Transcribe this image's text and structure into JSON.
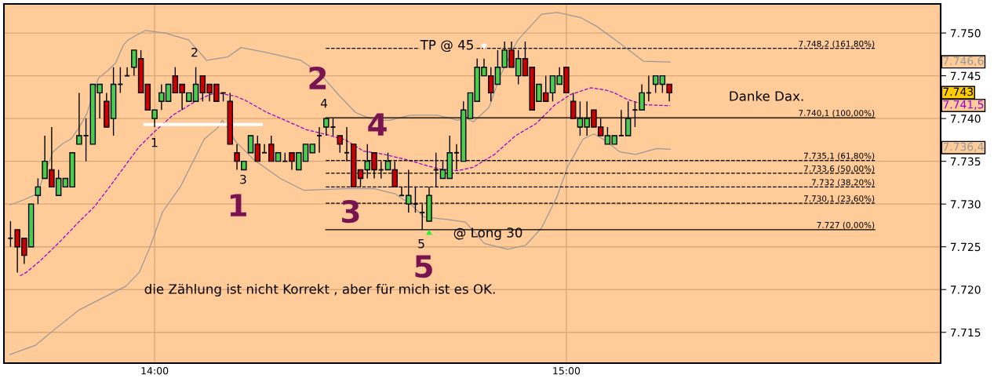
{
  "chart_data": {
    "type": "candlestick",
    "x": [
      13.65,
      13.6667,
      13.6833,
      13.7,
      13.7167,
      13.7333,
      13.75,
      13.7667,
      13.7833,
      13.8,
      13.8167,
      13.8333,
      13.85,
      13.8667,
      13.8833,
      13.9,
      13.9167,
      13.9333,
      13.95,
      13.9667,
      13.9833,
      14.0,
      14.0167,
      14.0333,
      14.05,
      14.0667,
      14.0833,
      14.1,
      14.1167,
      14.1333,
      14.15,
      14.1667,
      14.1833,
      14.2,
      14.2167,
      14.2333,
      14.25,
      14.2667,
      14.2833,
      14.3,
      14.3167,
      14.3333,
      14.35,
      14.3667,
      14.3833,
      14.4,
      14.4167,
      14.4333,
      14.45,
      14.4667,
      14.4833,
      14.5,
      14.5167,
      14.5333,
      14.55,
      14.5667,
      14.5833,
      14.6,
      14.6167,
      14.6333,
      14.65,
      14.6667,
      14.6833,
      14.7,
      14.7167,
      14.7333,
      14.75,
      14.7667,
      14.7833,
      14.8,
      14.8167,
      14.8333,
      14.85,
      14.8667,
      14.8833,
      14.9,
      14.9167,
      14.9333,
      14.95,
      14.9667,
      14.9833,
      15.0,
      15.0167,
      15.0333,
      15.05,
      15.0667,
      15.0833,
      15.1,
      15.1167,
      15.1333,
      15.15,
      15.1667,
      15.1833,
      15.2,
      15.2167,
      15.2333,
      15.25
    ],
    "ohlc": [
      [
        7726,
        7728,
        7725,
        7726
      ],
      [
        7727,
        7727,
        7722,
        7725
      ],
      [
        7726,
        7726,
        7723,
        7724
      ],
      [
        7725,
        7730,
        7725,
        7730
      ],
      [
        7731,
        7733,
        7730,
        7732
      ],
      [
        7733,
        7738,
        7733,
        7735
      ],
      [
        7734,
        7739,
        7732,
        7732
      ],
      [
        7731,
        7734,
        7731,
        7733
      ],
      [
        7732,
        7733,
        7732,
        7733
      ],
      [
        7732,
        7736,
        7732,
        7736
      ],
      [
        7737,
        7743,
        7737,
        7738
      ],
      [
        7738,
        7740,
        7735,
        7738
      ],
      [
        7737,
        7744,
        7737,
        7744
      ],
      [
        7743,
        7744,
        7740,
        7744
      ],
      [
        7742,
        7743,
        7739,
        7739
      ],
      [
        7740,
        7746,
        7738,
        7744
      ],
      [
        7744,
        7746,
        7743,
        7744
      ],
      [
        7745,
        7746,
        7745,
        7745
      ],
      [
        7746,
        7748,
        7745,
        7748
      ],
      [
        7747,
        7748,
        7743,
        7743
      ],
      [
        7744,
        7744,
        7741,
        7741
      ],
      [
        7740,
        7741,
        7739,
        7741
      ],
      [
        7742,
        7744,
        7741,
        7743
      ],
      [
        7742,
        7744,
        7742,
        7744
      ],
      [
        7745,
        7746,
        7743,
        7743
      ],
      [
        7744,
        7744,
        7741,
        7743
      ],
      [
        7742,
        7743,
        7742,
        7743
      ],
      [
        7742,
        7746,
        7742,
        7744
      ],
      [
        7745,
        7745,
        7742,
        7743
      ],
      [
        7744,
        7744,
        7742,
        7743
      ],
      [
        7744,
        7744,
        7742,
        7742
      ],
      [
        7743,
        7743,
        7742,
        7743
      ],
      [
        7742,
        7743,
        7737,
        7737
      ],
      [
        7736,
        7737,
        7734,
        7735
      ],
      [
        7734,
        7735,
        7734,
        7735
      ],
      [
        7736,
        7738,
        7736,
        7738
      ],
      [
        7737,
        7738,
        7735,
        7735
      ],
      [
        7736,
        7737,
        7736,
        7736
      ],
      [
        7737,
        7738,
        7735,
        7735
      ],
      [
        7735,
        7736,
        7735,
        7736
      ],
      [
        7735,
        7736,
        7735,
        7735
      ],
      [
        7736,
        7736,
        7734,
        7735
      ],
      [
        7734,
        7736,
        7734,
        7736
      ],
      [
        7735,
        7737,
        7735,
        7737
      ],
      [
        7736,
        7737,
        7736,
        7737
      ],
      [
        7738,
        7739,
        7736,
        7738
      ],
      [
        7739,
        7740,
        7738,
        7740
      ],
      [
        7739,
        7740,
        7738,
        7739
      ],
      [
        7738,
        7738,
        7736,
        7737
      ],
      [
        7736,
        7739,
        7735,
        7736
      ],
      [
        7737,
        7737,
        7732,
        7732
      ],
      [
        7734,
        7734,
        7732,
        7733
      ],
      [
        7734,
        7737,
        7733,
        7735
      ],
      [
        7736,
        7736,
        7733,
        7734
      ],
      [
        7734,
        7735,
        7733,
        7734
      ],
      [
        7734,
        7736,
        7734,
        7735
      ],
      [
        7734,
        7735,
        7732,
        7732
      ],
      [
        7731,
        7732,
        7731,
        7731
      ],
      [
        7730,
        7734,
        7729,
        7731
      ],
      [
        7730,
        7732,
        7729,
        7730
      ],
      [
        7729,
        7730,
        7727,
        7729
      ],
      [
        7728,
        7732,
        7728,
        7731
      ],
      [
        7734,
        7736,
        7732,
        7734
      ],
      [
        7733,
        7735,
        7733,
        7734
      ],
      [
        7733,
        7738,
        7733,
        7736
      ],
      [
        7736,
        7737,
        7734,
        7736
      ],
      [
        7735,
        7742,
        7735,
        7741
      ],
      [
        7740,
        7743,
        7740,
        7743
      ],
      [
        7742,
        7747,
        7742,
        7746
      ],
      [
        7745,
        7747,
        7745,
        7746
      ],
      [
        7745,
        7746,
        7742,
        7743
      ],
      [
        7744,
        7748,
        7744,
        7746
      ],
      [
        7746,
        7749,
        7746,
        7748
      ],
      [
        7748,
        7749,
        7746,
        7746
      ],
      [
        7745,
        7748,
        7744,
        7747
      ],
      [
        7747,
        7749,
        7745,
        7745
      ],
      [
        7746,
        7746,
        7741,
        7741
      ],
      [
        7742,
        7744,
        7742,
        7744
      ],
      [
        7743,
        7745,
        7742,
        7742
      ],
      [
        7743,
        7745,
        7742,
        7745
      ],
      [
        7744,
        7746,
        7744,
        7745
      ],
      [
        7746,
        7746,
        7743,
        7743
      ],
      [
        7742,
        7743,
        7740,
        7740
      ],
      [
        7739,
        7742,
        7738,
        7740
      ],
      [
        7739,
        7742,
        7738,
        7740
      ],
      [
        7741,
        7741,
        7739,
        7739
      ],
      [
        7739,
        7740,
        7738,
        7738
      ],
      [
        7737,
        7739,
        7737,
        7738
      ],
      [
        7737,
        7738,
        7737,
        7738
      ],
      [
        7738,
        7741,
        7738,
        7738
      ],
      [
        7738,
        7742,
        7738,
        7740
      ],
      [
        7741,
        7742,
        7739,
        7741
      ],
      [
        7741,
        7744,
        7741,
        7743
      ],
      [
        7743,
        7745,
        7742,
        7743
      ],
      [
        7744,
        7745,
        7743,
        7745
      ],
      [
        7744,
        7745,
        7743,
        7745
      ],
      [
        7744,
        7744,
        7742,
        7743
      ]
    ],
    "colors": [
      "#000000",
      "#cc0000",
      "#cc0000",
      "#4ccc4c",
      "#4ccc4c",
      "#4ccc4c",
      "#cc0000",
      "#4ccc4c",
      "#4ccc4c",
      "#4ccc4c",
      "#4ccc4c",
      "#000000",
      "#4ccc4c",
      "#4ccc4c",
      "#cc0000",
      "#4ccc4c",
      "#000000",
      "#000000",
      "#4ccc4c",
      "#cc0000",
      "#cc0000",
      "#4ccc4c",
      "#4ccc4c",
      "#4ccc4c",
      "#cc0000",
      "#cc0000",
      "#4ccc4c",
      "#4ccc4c",
      "#cc0000",
      "#cc0000",
      "#cc0000",
      "#000000",
      "#cc0000",
      "#cc0000",
      "#4ccc4c",
      "#4ccc4c",
      "#cc0000",
      "#000000",
      "#cc0000",
      "#4ccc4c",
      "#000000",
      "#cc0000",
      "#4ccc4c",
      "#4ccc4c",
      "#4ccc4c",
      "#000000",
      "#4ccc4c",
      "#000000",
      "#cc0000",
      "#000000",
      "#cc0000",
      "#cc0000",
      "#4ccc4c",
      "#cc0000",
      "#000000",
      "#4ccc4c",
      "#cc0000",
      "#000000",
      "#4ccc4c",
      "#000000",
      "#000000",
      "#4ccc4c",
      "#000000",
      "#4ccc4c",
      "#4ccc4c",
      "#000000",
      "#4ccc4c",
      "#4ccc4c",
      "#4ccc4c",
      "#4ccc4c",
      "#cc0000",
      "#4ccc4c",
      "#4ccc4c",
      "#cc0000",
      "#4ccc4c",
      "#cc0000",
      "#cc0000",
      "#4ccc4c",
      "#cc0000",
      "#4ccc4c",
      "#4ccc4c",
      "#cc0000",
      "#cc0000",
      "#4ccc4c",
      "#4ccc4c",
      "#cc0000",
      "#cc0000",
      "#4ccc4c",
      "#4ccc4c",
      "#000000",
      "#4ccc4c",
      "#000000",
      "#4ccc4c",
      "#000000",
      "#4ccc4c",
      "#4ccc4c",
      "#cc0000"
    ],
    "series": [
      {
        "type": "line",
        "color": "#999999",
        "line_style": "solid",
        "x": [
          13.6482,
          13.6825,
          13.7149,
          13.7301,
          13.753,
          13.7777,
          13.7968,
          13.8158,
          13.8349,
          13.8634,
          13.8863,
          13.9053,
          13.9244,
          13.9358,
          13.9777,
          14.0253,
          14.0825,
          14.1263,
          14.1777,
          14.2101,
          14.273,
          14.3549,
          14.4006,
          14.4501,
          14.4882,
          14.5339,
          14.572,
          14.6215,
          14.6863,
          14.7358,
          14.7549,
          14.7739,
          14.812,
          14.8387,
          14.8691,
          14.8825,
          14.9396,
          14.9777,
          15.0349,
          15.073,
          15.1301,
          15.1872,
          15.252
        ],
        "values": [
          7729.9,
          7730.5,
          7731.2,
          7733.2,
          7736.1,
          7737.1,
          7737.6,
          7738.9,
          7740.5,
          7744.7,
          7745.6,
          7746.5,
          7748.6,
          7749.2,
          7750.3,
          7750,
          7749.2,
          7746.8,
          7747.2,
          7748.3,
          7747.7,
          7746.8,
          7745.3,
          7742.6,
          7740.7,
          7739.8,
          7739.8,
          7740.4,
          7740.4,
          7739.8,
          7740.1,
          7739.6,
          7741.3,
          7744.9,
          7748,
          7749.2,
          7752.2,
          7752.4,
          7751.8,
          7750.8,
          7748.8,
          7746.7,
          7746.6
        ]
      },
      {
        "type": "line",
        "color": "#999999",
        "line_style": "solid",
        "x": [
          13.6482,
          13.7111,
          13.7587,
          13.8158,
          13.873,
          13.9301,
          13.9625,
          13.9872,
          14.0196,
          14.0634,
          14.0958,
          14.1206,
          14.153,
          14.1644,
          14.1777,
          14.1968,
          14.2158,
          14.2406,
          14.3053,
          14.3625,
          14.4634,
          14.5339,
          14.5834,
          14.6215,
          14.6539,
          14.711,
          14.7549,
          14.8006,
          14.8577,
          14.9015,
          14.9396,
          14.9777,
          15.0025,
          15.0406,
          15.0672,
          15.092,
          15.1301,
          15.1682,
          15.2196,
          15.252
        ],
        "values": [
          7712.4,
          7713.5,
          7715.4,
          7717.6,
          7719,
          7720.4,
          7722,
          7724.8,
          7729.1,
          7732.1,
          7735.2,
          7737.6,
          7738.9,
          7739.8,
          7738.9,
          7737.3,
          7736.4,
          7735.2,
          7733,
          7731.6,
          7731.8,
          7731.8,
          7731.2,
          7730,
          7728.5,
          7728.2,
          7727.9,
          7725.4,
          7724.7,
          7725.2,
          7727.2,
          7730.9,
          7734.3,
          7737.6,
          7738.2,
          7737.5,
          7736.1,
          7735.8,
          7736.5,
          7736.4
        ]
      },
      {
        "type": "line",
        "color": "#9900cc",
        "line_style": "dashed",
        "x": [
          13.673,
          13.6882,
          13.7206,
          13.772,
          13.8158,
          13.8539,
          13.892,
          13.9301,
          13.9625,
          14.0006,
          14.0444,
          14.0958,
          14.1339,
          14.153,
          14.1968,
          14.2215,
          14.273,
          14.3168,
          14.3682,
          14.4196,
          14.4634,
          14.5072,
          14.5587,
          14.6101,
          14.6539,
          14.692,
          14.7358,
          14.7739,
          14.8253,
          14.8767,
          14.9263,
          14.972,
          15.0101,
          15.0596,
          15.0977,
          15.1168,
          15.1491,
          15.193,
          15.252
        ],
        "values": [
          7721.6,
          7722,
          7723.3,
          7725.7,
          7727.9,
          7729.7,
          7732.1,
          7734.6,
          7736.7,
          7738.5,
          7740.4,
          7741.9,
          7742.8,
          7743,
          7742.6,
          7742.1,
          7740.7,
          7739.8,
          7738.7,
          7738.1,
          7737.5,
          7736.2,
          7735.8,
          7735.2,
          7734.6,
          7734.1,
          7733.9,
          7734.3,
          7735.8,
          7738,
          7739.4,
          7741.6,
          7742.8,
          7743.6,
          7743.3,
          7743,
          7742.2,
          7741.6,
          7741.5
        ]
      },
      {
        "type": "line",
        "name": "7.748,2 (161,80%)",
        "color": "#000000",
        "line_style": "dashed",
        "x": [
          14.4158,
          15.7491
        ],
        "values": [
          7748.2,
          7748.2
        ]
      },
      {
        "type": "line",
        "name": "7.740,1 (100,00%)",
        "color": "#000000",
        "line_style": "solid",
        "x": [
          14.4158,
          15.7491
        ],
        "values": [
          7740.1,
          7740.1
        ]
      },
      {
        "type": "line",
        "name": "7.735,1 (61,80%)",
        "color": "#000000",
        "line_style": "dashed",
        "x": [
          14.4158,
          15.7491
        ],
        "values": [
          7735.1,
          7735.1
        ]
      },
      {
        "type": "line",
        "name": "7.733,6 (50,00%)",
        "color": "#000000",
        "line_style": "dashed",
        "x": [
          14.4158,
          15.7491
        ],
        "values": [
          7733.6,
          7733.6
        ]
      },
      {
        "type": "line",
        "name": "7.732 (38,20%)",
        "color": "#000000",
        "line_style": "dashed",
        "x": [
          14.4158,
          15.7491
        ],
        "values": [
          7732,
          7732
        ]
      },
      {
        "type": "line",
        "name": "7.730,1 (23,60%)",
        "color": "#000000",
        "line_style": "dashed",
        "x": [
          14.4158,
          15.7491
        ],
        "values": [
          7730.1,
          7730.1
        ]
      },
      {
        "type": "line",
        "name": "7.727 (0,00%)",
        "color": "#000000",
        "line_style": "solid",
        "x": [
          14.4158,
          15.7491
        ],
        "values": [
          7727,
          7727
        ]
      },
      {
        "type": "line",
        "color": "#ffffff",
        "line_style": "solid",
        "x": [
          13.9768,
          14.2587
        ],
        "values": [
          7739.3,
          7739.3
        ]
      }
    ],
    "annotations": [
      "2",
      "1",
      "3",
      "4",
      "5",
      "1",
      "2",
      "3",
      "4",
      "5",
      "TP @ 45",
      "@ Long 30",
      "Danke Dax.",
      "die Zählung ist nicht Korrekt , aber für mich ist es OK.",
      "7.746,6",
      "7.743",
      "7.741,5",
      "7.736,4"
    ],
    "xlim": [
      13.634,
      15.909
    ],
    "ylim": [
      7711.4,
      7753.4
    ],
    "xticks": [
      {
        "value": 14,
        "label": "14:00"
      },
      {
        "value": 15,
        "label": "15:00"
      }
    ],
    "yticks": [
      {
        "value": 7715,
        "label": "7.715"
      },
      {
        "value": 7720,
        "label": "7.720"
      },
      {
        "value": 7725,
        "label": "7.725"
      },
      {
        "value": 7730,
        "label": "7.730"
      },
      {
        "value": 7735,
        "label": "7.735"
      },
      {
        "value": 7740,
        "label": "7.740"
      },
      {
        "value": 7745,
        "label": "7.745"
      },
      {
        "value": 7750,
        "label": "7.750"
      }
    ],
    "grid": true
  }
}
